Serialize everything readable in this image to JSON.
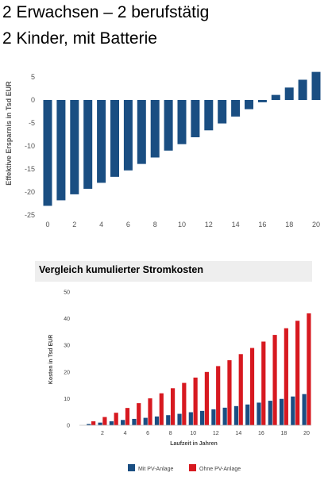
{
  "headings": {
    "line1": "2 Erwachsen – 2 berufstätig",
    "line2": "2 Kinder, mit Batterie"
  },
  "colors": {
    "blue": "#1a4e82",
    "red": "#d71920",
    "axis_text": "#555555",
    "title_bg": "#eeeeee"
  },
  "chart_data": [
    {
      "type": "bar",
      "title": "",
      "xlabel": "",
      "ylabel": "Effektive Ersparnis in Tsd EUR",
      "ylim": [
        -25,
        5
      ],
      "yticks": [
        5,
        0,
        -5,
        -10,
        -15,
        -20,
        -25
      ],
      "xticks": [
        0,
        2,
        4,
        6,
        8,
        10,
        12,
        14,
        16,
        18,
        20
      ],
      "grid": false,
      "x": [
        0,
        1,
        2,
        3,
        4,
        5,
        6,
        7,
        8,
        9,
        10,
        11,
        12,
        13,
        14,
        15,
        16,
        17,
        18,
        19,
        20
      ],
      "series": [
        {
          "values": [
            -23.0,
            -21.8,
            -20.5,
            -19.3,
            -18.0,
            -16.7,
            -15.3,
            -13.9,
            -12.5,
            -11.0,
            -9.6,
            -8.1,
            -6.6,
            -5.1,
            -3.6,
            -2.0,
            -0.5,
            1.1,
            2.7,
            4.4,
            6.1
          ]
        }
      ]
    },
    {
      "type": "bar",
      "title": "Vergleich kumulierter Stromkosten",
      "xlabel": "Laufzeit in Jahren",
      "ylabel": "Kosten in Tsd EUR",
      "ylim": [
        0,
        50
      ],
      "yticks": [
        0,
        10,
        20,
        30,
        40,
        50
      ],
      "xticks": [
        2,
        4,
        6,
        8,
        10,
        12,
        14,
        16,
        18,
        20
      ],
      "grid": false,
      "legend": "bottom",
      "x": [
        1,
        2,
        3,
        4,
        5,
        6,
        7,
        8,
        9,
        10,
        11,
        12,
        13,
        14,
        15,
        16,
        17,
        18,
        19,
        20
      ],
      "series": [
        {
          "name": "Mit PV-Anlage",
          "values": [
            0.5,
            1.0,
            1.5,
            2.0,
            2.4,
            2.8,
            3.3,
            3.8,
            4.3,
            4.9,
            5.4,
            6.0,
            6.6,
            7.2,
            7.8,
            8.5,
            9.2,
            9.9,
            10.8,
            11.7
          ]
        },
        {
          "name": "Ohne PV-Anlage",
          "values": [
            1.5,
            3.1,
            4.7,
            6.5,
            8.3,
            10.1,
            12.0,
            13.9,
            15.9,
            17.9,
            20.0,
            22.2,
            24.4,
            26.7,
            29.0,
            31.4,
            33.9,
            36.4,
            39.2,
            42.0
          ]
        }
      ]
    }
  ]
}
